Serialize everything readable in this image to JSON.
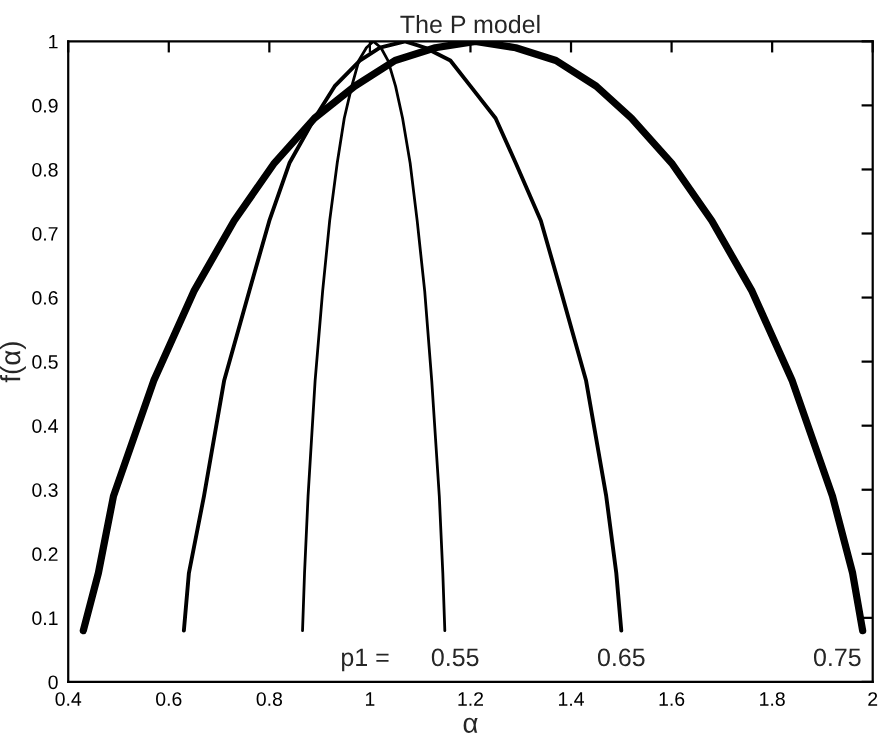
{
  "chart_data": {
    "type": "line",
    "title": "The P model",
    "xlabel": "α",
    "ylabel": "f(α)",
    "series": [
      {
        "color": "#000000",
        "x": [
          0.866,
          0.87,
          0.877,
          0.891,
          0.906,
          0.92,
          0.935,
          0.949,
          0.964,
          0.978,
          0.993,
          1.007,
          1.022,
          1.036,
          1.051,
          1.065,
          1.08,
          1.094,
          1.109,
          1.123,
          1.138,
          1.145,
          1.149
        ],
        "values": [
          0.08,
          0.17,
          0.29,
          0.47,
          0.61,
          0.72,
          0.81,
          0.88,
          0.93,
          0.97,
          0.99,
          1.0,
          0.99,
          0.97,
          0.93,
          0.88,
          0.81,
          0.72,
          0.61,
          0.47,
          0.29,
          0.17,
          0.08
        ]
      },
      {
        "color": "#000000",
        "x": [
          0.63,
          0.64,
          0.67,
          0.71,
          0.76,
          0.8,
          0.84,
          0.89,
          0.93,
          0.98,
          1.02,
          1.07,
          1.11,
          1.16,
          1.2,
          1.25,
          1.29,
          1.34,
          1.38,
          1.43,
          1.47,
          1.49,
          1.5
        ],
        "values": [
          0.08,
          0.17,
          0.29,
          0.47,
          0.61,
          0.72,
          0.81,
          0.88,
          0.93,
          0.97,
          0.99,
          1.0,
          0.99,
          0.97,
          0.93,
          0.88,
          0.81,
          0.72,
          0.61,
          0.47,
          0.29,
          0.17,
          0.08
        ]
      },
      {
        "color": "#000000",
        "x": [
          0.43,
          0.46,
          0.49,
          0.57,
          0.65,
          0.73,
          0.81,
          0.89,
          0.97,
          1.05,
          1.13,
          1.21,
          1.29,
          1.37,
          1.45,
          1.52,
          1.6,
          1.68,
          1.76,
          1.84,
          1.92,
          1.96,
          1.98
        ],
        "values": [
          0.08,
          0.17,
          0.29,
          0.47,
          0.61,
          0.72,
          0.81,
          0.88,
          0.93,
          0.97,
          0.99,
          1.0,
          0.99,
          0.97,
          0.93,
          0.88,
          0.81,
          0.72,
          0.61,
          0.47,
          0.29,
          0.17,
          0.08
        ]
      }
    ],
    "annotations": [
      "p1 =",
      "0.55",
      "0.65",
      "0.75"
    ],
    "xlim": [
      0.4,
      2
    ],
    "ylim": [
      0,
      1
    ],
    "xticks": [
      0.4,
      0.6,
      0.8,
      1,
      1.2,
      1.4,
      1.6,
      1.8,
      2
    ],
    "yticks": [
      0,
      0.1,
      0.2,
      0.3,
      0.4,
      0.5,
      0.6,
      0.7,
      0.8,
      0.9,
      1
    ],
    "grid": false,
    "legend": false,
    "marker": "none",
    "line_style": "solid"
  }
}
